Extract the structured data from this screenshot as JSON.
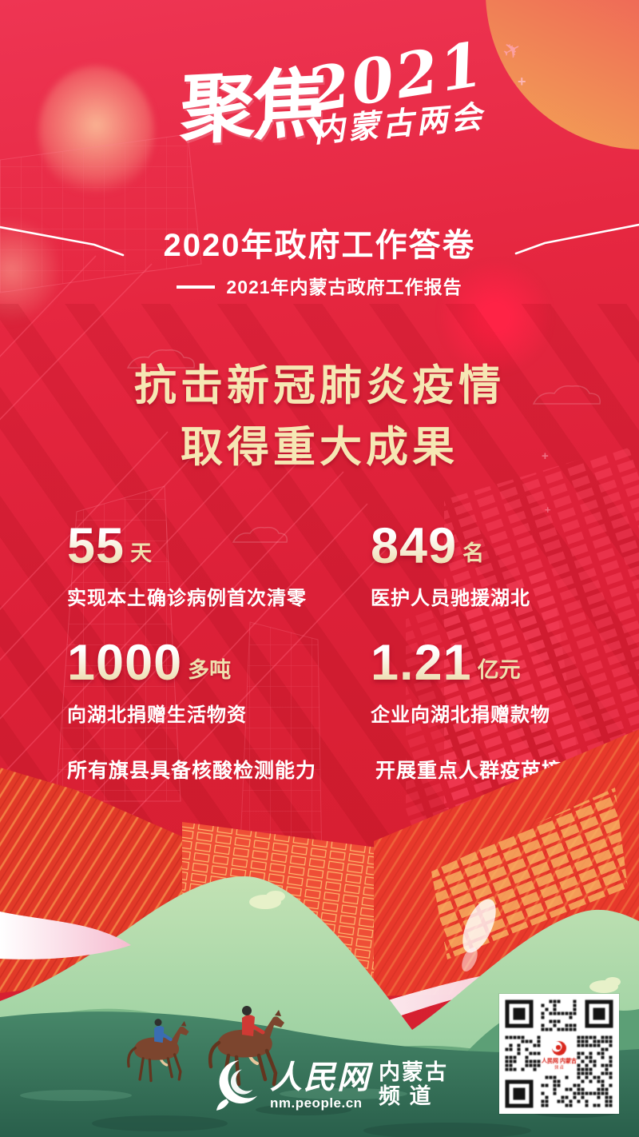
{
  "poster": {
    "masthead": {
      "brand_calligraphy": "聚焦",
      "year": "2021",
      "event": "内蒙古两会"
    },
    "title_block": {
      "title": "2020年政府工作答卷",
      "subtitle_dash": "——",
      "subtitle": "2021年内蒙古政府工作报告"
    },
    "headline": {
      "line1": "抗击新冠肺炎疫情",
      "line2": "取得重大成果"
    },
    "stats": [
      {
        "value": "55",
        "unit": "天",
        "caption": "实现本土确诊病例首次清零"
      },
      {
        "value": "849",
        "unit": "名",
        "caption": "医护人员驰援湖北"
      },
      {
        "value": "1000",
        "unit": "多吨",
        "caption": "向湖北捐赠生活物资"
      },
      {
        "value": "1.21",
        "unit": "亿元",
        "caption": "企业向湖北捐赠款物"
      }
    ],
    "highlights": [
      "所有旗县具备核酸检测能力",
      "开展重点人群疫苗接种"
    ],
    "footer": {
      "brand": "人民网",
      "url": "nm.people.cn",
      "channel_line1": "内蒙古",
      "channel_line2": "频 道"
    },
    "colors": {
      "background_red": "#dc2038",
      "headline_gold": "#f6e7b4",
      "stat_number_cream": "#ecd9a6",
      "hill_green": "#9ed3a4",
      "foreground_teal": "#2f6a54",
      "building_orange": "#f6934a",
      "circle_orange": "#f29c55"
    }
  }
}
